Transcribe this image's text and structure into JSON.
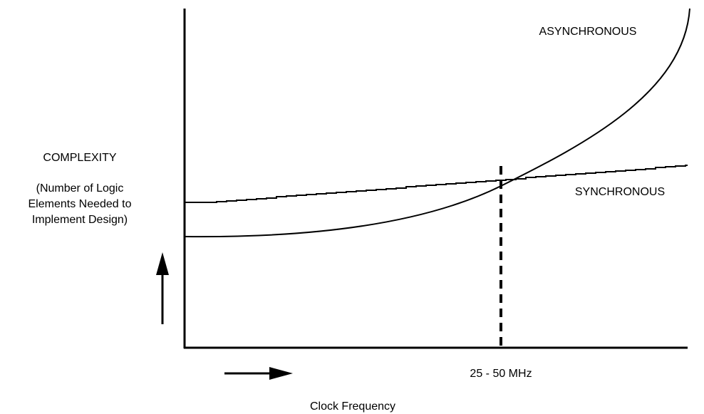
{
  "y_axis": {
    "title": "COMPLEXITY",
    "description": [
      "(Number of Logic",
      "Elements Needed to",
      "Implement Design)"
    ]
  },
  "x_axis": {
    "title": "Clock Frequency"
  },
  "curves": [
    {
      "label": "ASYNCHRONOUS"
    },
    {
      "label": "SYNCHRONOUS"
    }
  ],
  "marker": {
    "label": "25 - 50 MHz"
  }
}
